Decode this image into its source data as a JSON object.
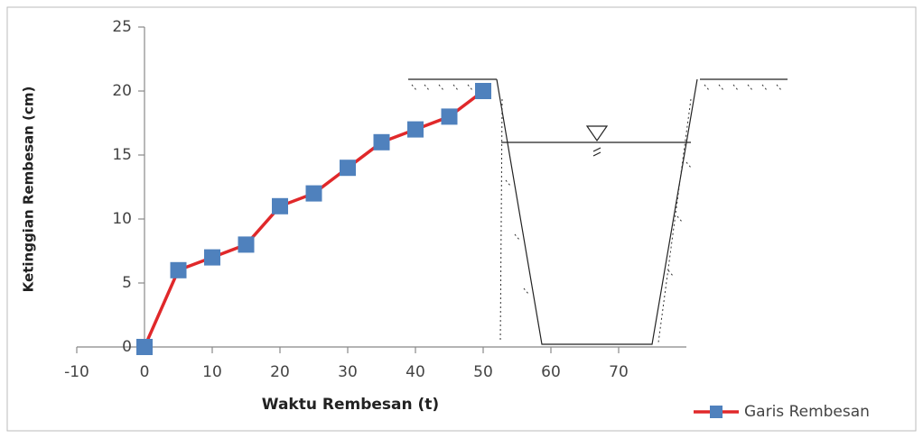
{
  "chart_data": {
    "type": "line",
    "x": [
      0,
      5,
      10,
      15,
      20,
      25,
      30,
      35,
      40,
      45,
      50
    ],
    "series": [
      {
        "name": "Garis Rembesan",
        "color": "#e0282a",
        "marker_color": "#4f81bd",
        "values": [
          0,
          6,
          7,
          8,
          11,
          12,
          14,
          16,
          17,
          18,
          20
        ]
      }
    ],
    "x_label": "Waktu Rembesan (t)",
    "y_label": "Ketinggian Rembesan (cm)",
    "xlim": [
      -10,
      80
    ],
    "ylim": [
      0,
      25
    ],
    "xticks": [
      -10,
      0,
      10,
      20,
      30,
      40,
      50,
      60,
      70
    ],
    "yticks": [
      0,
      5,
      10,
      15,
      20,
      25
    ],
    "grid": false,
    "legend": "bottom-right"
  }
}
